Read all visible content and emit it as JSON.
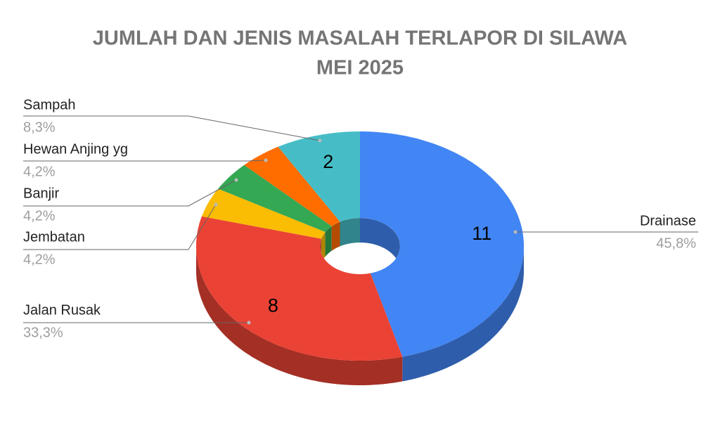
{
  "chart_data": {
    "type": "donut3d",
    "title": [
      "JUMLAH DAN JENIS MASALAH TERLAPOR DI SILAWA",
      "MEI 2025"
    ],
    "categories": [
      "Drainase",
      "Jalan Rusak",
      "Jembatan",
      "Banjir",
      "Hewan Anjing yg",
      "Sampah"
    ],
    "values": [
      11,
      8,
      1,
      1,
      1,
      2
    ],
    "value_labels": [
      "11",
      "8",
      null,
      null,
      null,
      "2"
    ],
    "percent_labels": [
      "45,8%",
      "33,3%",
      "4,2%",
      "4,2%",
      "4,2%",
      "8,3%"
    ],
    "colors": [
      "#4285f4",
      "#ea4335",
      "#fbbc04",
      "#34a853",
      "#ff6d01",
      "#46bdc6"
    ]
  }
}
